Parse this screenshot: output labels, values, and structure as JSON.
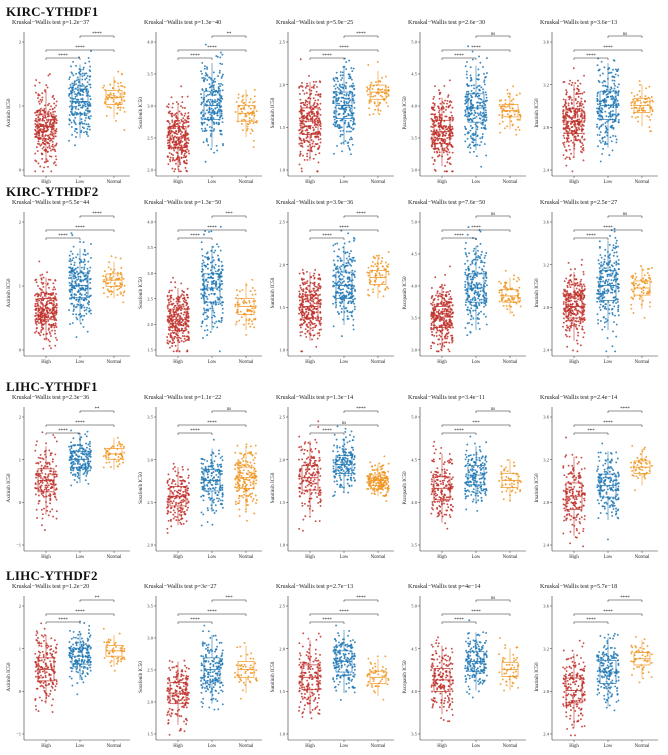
{
  "colors": {
    "High": "#c0312b",
    "Low": "#1f77b4",
    "Normal": "#f0941e",
    "axis": "#333333",
    "bracket": "#222222"
  },
  "groups": [
    "High",
    "Low",
    "Normal"
  ],
  "sections": [
    {
      "title": "KIRC-YTHDF1",
      "panels": [
        {
          "ylabel": "Axitinib IC50",
          "test": "Kruskal−Wallis test p=1.2e−37",
          "ticks": [
            "0",
            "1",
            "2"
          ],
          "sig": [
            "****",
            "****",
            "****"
          ],
          "n": [
            300,
            240,
            70
          ],
          "center": [
            0.36,
            0.55,
            0.58
          ],
          "spread": [
            0.14,
            0.14,
            0.08
          ]
        },
        {
          "ylabel": "Sorafenib IC50",
          "test": "Kruskal−Wallis test p=1.3e−40",
          "ticks": [
            "2.0",
            "2.5",
            "3.0",
            "3.5",
            "4.0"
          ],
          "sig": [
            "****",
            "****",
            "**"
          ],
          "n": [
            300,
            240,
            70
          ],
          "center": [
            0.28,
            0.52,
            0.46
          ],
          "spread": [
            0.12,
            0.16,
            0.09
          ]
        },
        {
          "ylabel": "Sunitinib IC50",
          "test": "Kruskal−Wallis test p=5.9e−25",
          "ticks": [
            "1.0",
            "1.5",
            "2.0",
            "2.5"
          ],
          "sig": [
            "****",
            "****",
            "****"
          ],
          "n": [
            300,
            240,
            70
          ],
          "center": [
            0.4,
            0.52,
            0.62
          ],
          "spread": [
            0.15,
            0.15,
            0.08
          ]
        },
        {
          "ylabel": "Pazopanib IC50",
          "test": "Kruskal−Wallis test p=2.6e−30",
          "ticks": [
            "3.0",
            "3.5",
            "4.0",
            "4.5",
            "5.0"
          ],
          "sig": [
            "****",
            "****",
            "ns"
          ],
          "n": [
            300,
            240,
            70
          ],
          "center": [
            0.32,
            0.5,
            0.48
          ],
          "spread": [
            0.13,
            0.16,
            0.07
          ]
        },
        {
          "ylabel": "Imatinib IC50",
          "test": "Kruskal−Wallis test p=3.6e−13",
          "ticks": [
            "2.4",
            "2.8",
            "3.2",
            "3.6"
          ],
          "sig": [
            "****",
            "****",
            "ns"
          ],
          "n": [
            300,
            240,
            70
          ],
          "center": [
            0.4,
            0.52,
            0.52
          ],
          "spread": [
            0.14,
            0.16,
            0.08
          ]
        }
      ]
    },
    {
      "title": "KIRC-YTHDF2",
      "panels": [
        {
          "ylabel": "Axitinib IC50",
          "test": "Kruskal−Wallis test p=5.5e−44",
          "ticks": [
            "0",
            "1",
            "2"
          ],
          "sig": [
            "****",
            "****",
            "****"
          ],
          "n": [
            300,
            240,
            70
          ],
          "center": [
            0.34,
            0.52,
            0.56
          ],
          "spread": [
            0.12,
            0.14,
            0.07
          ]
        },
        {
          "ylabel": "Sorafenib IC50",
          "test": "Kruskal−Wallis test p=1.3e−50",
          "ticks": [
            "1.5",
            "2.0",
            "2.5",
            "3.0",
            "3.5",
            "4.0"
          ],
          "sig": [
            "****",
            "****",
            "***"
          ],
          "n": [
            300,
            240,
            70
          ],
          "center": [
            0.26,
            0.5,
            0.36
          ],
          "spread": [
            0.12,
            0.16,
            0.09
          ]
        },
        {
          "ylabel": "Sunitinib IC50",
          "test": "Kruskal−Wallis test p=3.9e−36",
          "ticks": [
            "1.0",
            "1.5",
            "2.0",
            "2.5"
          ],
          "sig": [
            "****",
            "****",
            "****"
          ],
          "n": [
            300,
            240,
            70
          ],
          "center": [
            0.36,
            0.52,
            0.58
          ],
          "spread": [
            0.13,
            0.15,
            0.08
          ]
        },
        {
          "ylabel": "Pazopanib IC50",
          "test": "Kruskal−Wallis test p=7.6e−50",
          "ticks": [
            "3.0",
            "3.5",
            "4.0",
            "4.5",
            "5.0"
          ],
          "sig": [
            "****",
            "****",
            "ns"
          ],
          "n": [
            300,
            240,
            70
          ],
          "center": [
            0.28,
            0.5,
            0.44
          ],
          "spread": [
            0.12,
            0.16,
            0.07
          ]
        },
        {
          "ylabel": "Imatinib IC50",
          "test": "Kruskal−Wallis test p=2.5e−27",
          "ticks": [
            "2.4",
            "2.8",
            "3.2",
            "3.6"
          ],
          "sig": [
            "****",
            "****",
            "ns"
          ],
          "n": [
            300,
            240,
            70
          ],
          "center": [
            0.36,
            0.52,
            0.5
          ],
          "spread": [
            0.13,
            0.17,
            0.08
          ]
        }
      ]
    },
    {
      "title": "LIHC-YTHDF1",
      "panels": [
        {
          "ylabel": "Axitinib IC50",
          "test": "Kruskal−Wallis test p=2.3e−36",
          "ticks": [
            "−1",
            "0",
            "1",
            "2"
          ],
          "sig": [
            "****",
            "****",
            "**"
          ],
          "n": [
            180,
            180,
            50
          ],
          "center": [
            0.52,
            0.68,
            0.72
          ],
          "spread": [
            0.13,
            0.09,
            0.06
          ]
        },
        {
          "ylabel": "Sorafenib IC50",
          "test": "Kruskal−Wallis test p=1.1e−22",
          "ticks": [
            "2.0",
            "2.5",
            "3.0",
            "3.5"
          ],
          "sig": [
            "****",
            "****",
            "ns"
          ],
          "n": [
            180,
            180,
            180
          ],
          "center": [
            0.4,
            0.52,
            0.54
          ],
          "spread": [
            0.11,
            0.12,
            0.12
          ]
        },
        {
          "ylabel": "Sunitinib IC50",
          "test": "Kruskal−Wallis test p=1.3e−14",
          "ticks": [
            "1.0",
            "1.5",
            "2.0",
            "2.5"
          ],
          "sig": [
            "****",
            "ns",
            "****"
          ],
          "n": [
            180,
            180,
            180
          ],
          "center": [
            0.54,
            0.64,
            0.52
          ],
          "spread": [
            0.14,
            0.1,
            0.06
          ]
        },
        {
          "ylabel": "Pazopanib IC50",
          "test": "Kruskal−Wallis test p=3.4e−11",
          "ticks": [
            "3.5",
            "4.0",
            "4.5",
            "5.0"
          ],
          "sig": [
            "****",
            "***",
            "ns"
          ],
          "n": [
            180,
            180,
            50
          ],
          "center": [
            0.46,
            0.56,
            0.52
          ],
          "spread": [
            0.13,
            0.11,
            0.08
          ]
        },
        {
          "ylabel": "Imatinib IC50",
          "test": "Kruskal−Wallis test p=2.4e−14",
          "ticks": [
            "2.4",
            "2.8",
            "3.2",
            "3.6"
          ],
          "sig": [
            "***",
            "****",
            "****"
          ],
          "n": [
            180,
            180,
            50
          ],
          "center": [
            0.4,
            0.48,
            0.62
          ],
          "spread": [
            0.15,
            0.13,
            0.07
          ]
        }
      ]
    },
    {
      "title": "LIHC-YTHDF2",
      "panels": [
        {
          "ylabel": "Axitinib IC50",
          "test": "Kruskal−Wallis test p=1.2e−20",
          "ticks": [
            "−1",
            "0",
            "1",
            "2"
          ],
          "sig": [
            "****",
            "****",
            "**"
          ],
          "n": [
            180,
            180,
            50
          ],
          "center": [
            0.52,
            0.62,
            0.66
          ],
          "spread": [
            0.13,
            0.09,
            0.06
          ]
        },
        {
          "ylabel": "Sorafenib IC50",
          "test": "Kruskal−Wallis test p=3e−27",
          "ticks": [
            "1.5",
            "2.0",
            "2.5",
            "3.0",
            "3.5"
          ],
          "sig": [
            "****",
            "****",
            "***"
          ],
          "n": [
            180,
            180,
            50
          ],
          "center": [
            0.34,
            0.52,
            0.52
          ],
          "spread": [
            0.12,
            0.13,
            0.09
          ]
        },
        {
          "ylabel": "Sunitinib IC50",
          "test": "Kruskal−Wallis test p=2.7e−13",
          "ticks": [
            "1.0",
            "1.5",
            "2.0",
            "2.5"
          ],
          "sig": [
            "****",
            "****",
            "****"
          ],
          "n": [
            180,
            180,
            50
          ],
          "center": [
            0.46,
            0.58,
            0.46
          ],
          "spread": [
            0.14,
            0.12,
            0.07
          ]
        },
        {
          "ylabel": "Pazopanib IC50",
          "test": "Kruskal−Wallis test p=4e−14",
          "ticks": [
            "3.5",
            "4.0",
            "4.5",
            "5.0"
          ],
          "sig": [
            "****",
            "****",
            "ns"
          ],
          "n": [
            180,
            180,
            50
          ],
          "center": [
            0.44,
            0.58,
            0.52
          ],
          "spread": [
            0.13,
            0.11,
            0.08
          ]
        },
        {
          "ylabel": "Imatinib IC50",
          "test": "Kruskal−Wallis test p=5.7e−18",
          "ticks": [
            "2.4",
            "2.8",
            "3.2",
            "3.6"
          ],
          "sig": [
            "****",
            "****",
            "****"
          ],
          "n": [
            180,
            180,
            50
          ],
          "center": [
            0.36,
            0.5,
            0.6
          ],
          "spread": [
            0.14,
            0.13,
            0.07
          ]
        }
      ]
    }
  ],
  "chart_data": {
    "type": "boxplot-with-jitter",
    "groups": [
      "High",
      "Low",
      "Normal"
    ],
    "rows": [
      "KIRC-YTHDF1",
      "KIRC-YTHDF2",
      "LIHC-YTHDF1",
      "LIHC-YTHDF2"
    ],
    "drugs": [
      "Axitinib",
      "Sorafenib",
      "Sunitinib",
      "Pazopanib",
      "Imatinib"
    ],
    "xlabel": "",
    "comparisons": [
      "High vs Low",
      "High vs Normal",
      "Low vs Normal"
    ]
  }
}
